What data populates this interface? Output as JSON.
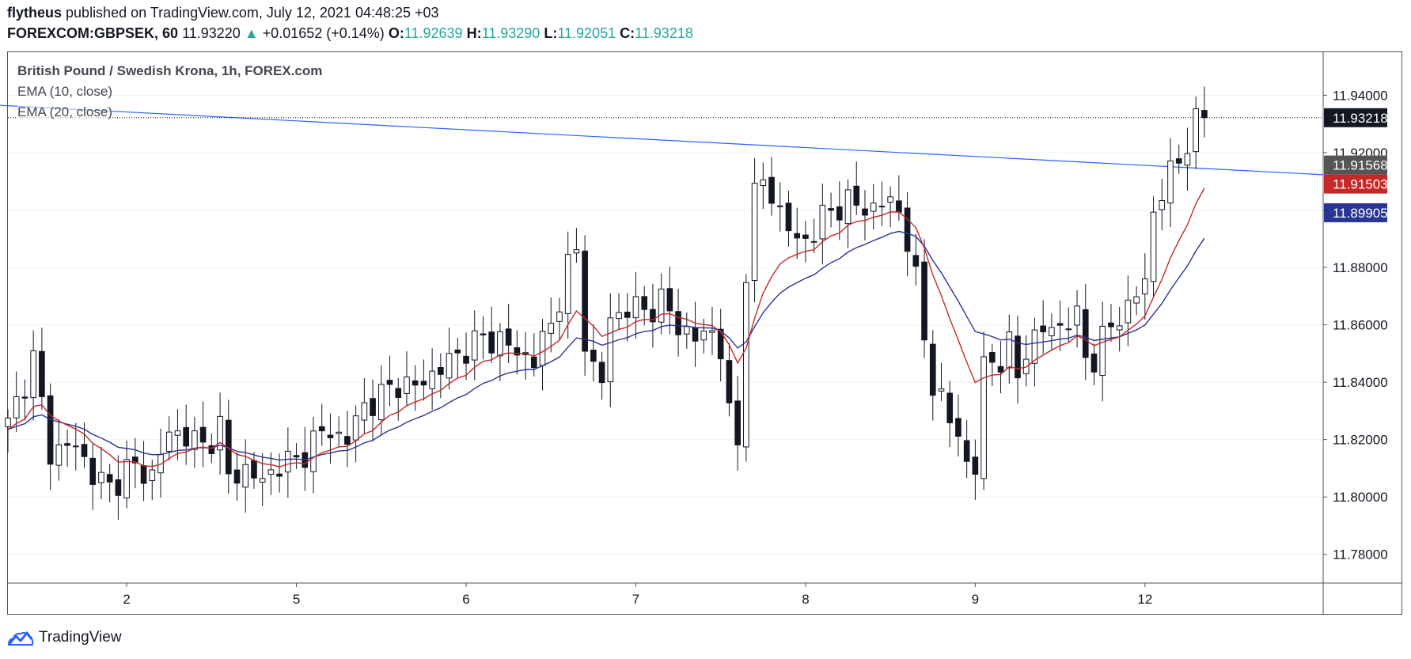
{
  "header": {
    "author": "flytheus",
    "published_text": "published on TradingView.com, July 12, 2021 04:48:25 +03",
    "symbol": "FOREXCOM:GBPSEK, 60",
    "last": "11.93220",
    "change_arrow": "▲",
    "change": "+0.01652 (+0.14%)",
    "o_label": "O:",
    "o_value": "11.92639",
    "h_label": "H:",
    "h_value": "11.93290",
    "l_label": "L:",
    "l_value": "11.92051",
    "c_label": "C:",
    "c_value": "11.93218"
  },
  "legend": {
    "title": "British Pound / Swedish Krona, 1h, FOREX.com",
    "ema10": "EMA (10, close)",
    "ema20": "EMA (20, close)"
  },
  "footer": {
    "brand": "TradingView"
  },
  "colors": {
    "ema10": "#c62828",
    "ema20": "#283593",
    "trendline": "#2962ff",
    "grid": "#e0e3eb",
    "axis_text": "#131722",
    "last_bg": "#131722",
    "trend_bg": "#555555"
  },
  "chart_data": {
    "type": "candlestick",
    "title": "British Pound / Swedish Krona, 1h, FOREX.com",
    "ylim": [
      11.77,
      11.955
    ],
    "y_ticks": [
      "11.94000",
      "11.92000",
      "11.90000",
      "11.88000",
      "11.86000",
      "11.84000",
      "11.82000",
      "11.80000",
      "11.78000"
    ],
    "y_tick_values": [
      11.94,
      11.92,
      11.9,
      11.88,
      11.86,
      11.84,
      11.82,
      11.8,
      11.78
    ],
    "x_range": [
      0,
      155
    ],
    "x_ticks": [
      {
        "label": "2",
        "index": 14
      },
      {
        "label": "5",
        "index": 34
      },
      {
        "label": "6",
        "index": 54
      },
      {
        "label": "7",
        "index": 74
      },
      {
        "label": "8",
        "index": 94
      },
      {
        "label": "9",
        "index": 114
      },
      {
        "label": "12",
        "index": 134
      }
    ],
    "price_labels": [
      {
        "name": "last-price",
        "label": "11.93218",
        "value": 11.93218
      },
      {
        "name": "trendline-price",
        "label": "11.91568",
        "value": 11.91568
      },
      {
        "name": "ema10-price",
        "label": "11.91503",
        "value": 11.91503
      },
      {
        "name": "ema20-price",
        "label": "11.89905",
        "value": 11.89905
      }
    ],
    "trendline": {
      "from": {
        "index": -1,
        "value": 11.9365
      },
      "to": {
        "index": 155,
        "value": 11.9123
      }
    },
    "close_anchors": [
      [
        0,
        11.825
      ],
      [
        3,
        11.848
      ],
      [
        5,
        11.816
      ],
      [
        8,
        11.818
      ],
      [
        10,
        11.808
      ],
      [
        12,
        11.803
      ],
      [
        14,
        11.81
      ],
      [
        17,
        11.808
      ],
      [
        19,
        11.822
      ],
      [
        21,
        11.822
      ],
      [
        23,
        11.817
      ],
      [
        25,
        11.825
      ],
      [
        26,
        11.806
      ],
      [
        28,
        11.81
      ],
      [
        30,
        11.805
      ],
      [
        32,
        11.812
      ],
      [
        34,
        11.812
      ],
      [
        36,
        11.82
      ],
      [
        38,
        11.823
      ],
      [
        40,
        11.82
      ],
      [
        42,
        11.832
      ],
      [
        44,
        11.835
      ],
      [
        46,
        11.84
      ],
      [
        48,
        11.838
      ],
      [
        50,
        11.843
      ],
      [
        52,
        11.847
      ],
      [
        54,
        11.852
      ],
      [
        56,
        11.855
      ],
      [
        58,
        11.855
      ],
      [
        60,
        11.85
      ],
      [
        62,
        11.848
      ],
      [
        64,
        11.86
      ],
      [
        66,
        11.88
      ],
      [
        67,
        11.885
      ],
      [
        68,
        11.855
      ],
      [
        69,
        11.845
      ],
      [
        70,
        11.84
      ],
      [
        71,
        11.862
      ],
      [
        73,
        11.866
      ],
      [
        75,
        11.865
      ],
      [
        77,
        11.868
      ],
      [
        79,
        11.86
      ],
      [
        81,
        11.855
      ],
      [
        83,
        11.858
      ],
      [
        84,
        11.852
      ],
      [
        85,
        11.828
      ],
      [
        86,
        11.818
      ],
      [
        87,
        11.88
      ],
      [
        88,
        11.905
      ],
      [
        89,
        11.91
      ],
      [
        90,
        11.905
      ],
      [
        91,
        11.9
      ],
      [
        93,
        11.888
      ],
      [
        95,
        11.893
      ],
      [
        97,
        11.9
      ],
      [
        99,
        11.903
      ],
      [
        101,
        11.9
      ],
      [
        103,
        11.903
      ],
      [
        105,
        11.9
      ],
      [
        106,
        11.89
      ],
      [
        107,
        11.875
      ],
      [
        108,
        11.855
      ],
      [
        109,
        11.84
      ],
      [
        110,
        11.834
      ],
      [
        111,
        11.826
      ],
      [
        112,
        11.822
      ],
      [
        113,
        11.812
      ],
      [
        114,
        11.81
      ],
      [
        115,
        11.845
      ],
      [
        116,
        11.848
      ],
      [
        117,
        11.848
      ],
      [
        118,
        11.852
      ],
      [
        119,
        11.842
      ],
      [
        120,
        11.852
      ],
      [
        122,
        11.858
      ],
      [
        124,
        11.86
      ],
      [
        126,
        11.862
      ],
      [
        127,
        11.85
      ],
      [
        128,
        11.848
      ],
      [
        130,
        11.86
      ],
      [
        132,
        11.866
      ],
      [
        134,
        11.875
      ],
      [
        135,
        11.9
      ],
      [
        136,
        11.906
      ],
      [
        138,
        11.918
      ],
      [
        140,
        11.93
      ],
      [
        141,
        11.9322
      ]
    ]
  }
}
